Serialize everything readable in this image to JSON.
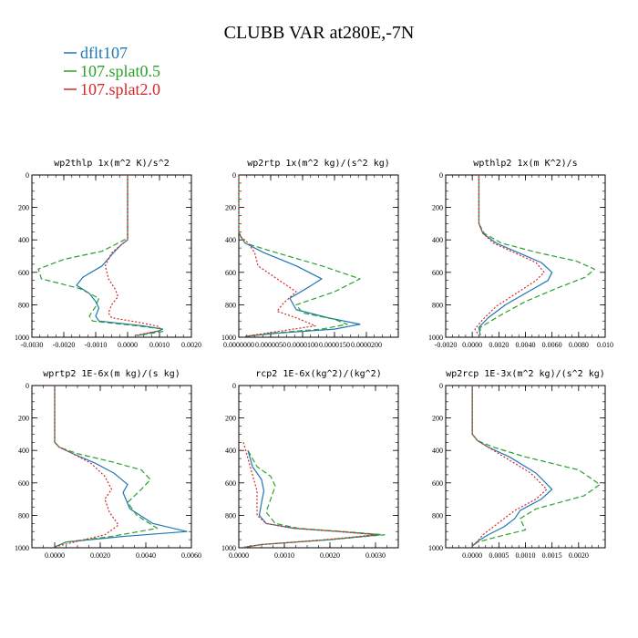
{
  "title": "CLUBB VAR at280E,-7N",
  "legend": [
    {
      "label": "dflt107",
      "color": "#1f77b4"
    },
    {
      "label": "107.splat0.5",
      "color": "#2ca02c"
    },
    {
      "label": "107.splat2.0",
      "color": "#d62728"
    }
  ],
  "chart_data": [
    {
      "type": "line",
      "title": "wp2thlp  1x(m^2 K)/s^2",
      "xlim": [
        -0.003,
        0.002
      ],
      "ylim": [
        0,
        1000
      ],
      "x_ticks": [
        -0.003,
        -0.002,
        -0.001,
        0.0,
        0.001,
        0.002
      ],
      "x_tick_labels": [
        "-0.0030",
        "-0.0020",
        "-0.0010",
        "0.0000",
        "0.0010",
        "0.0020"
      ],
      "y_ticks": [
        0,
        200,
        400,
        600,
        800,
        1000
      ],
      "y_tick_labels": [
        "0",
        "200",
        "400",
        "600",
        "800",
        "1000"
      ],
      "series": [
        {
          "name": "dflt107",
          "x": [
            0,
            0,
            0,
            0,
            -0.0002,
            -0.0004,
            -0.0008,
            -0.0014,
            -0.0016,
            -0.0012,
            -0.001,
            -0.0009,
            -0.001,
            -0.0009,
            0.0005,
            0.0011,
            0.001,
            0.0003
          ],
          "y": [
            0,
            200,
            350,
            400,
            430,
            470,
            560,
            630,
            680,
            730,
            780,
            820,
            870,
            900,
            930,
            950,
            960,
            990
          ]
        },
        {
          "name": "107.splat0.5",
          "x": [
            0,
            0,
            0,
            0,
            -0.0003,
            -0.0008,
            -0.002,
            -0.0028,
            -0.0027,
            -0.0015,
            -0.0009,
            -0.001,
            -0.0012,
            -0.0011,
            0.0003,
            0.0011,
            0.0011,
            0.0003
          ],
          "y": [
            0,
            200,
            350,
            390,
            420,
            470,
            520,
            580,
            640,
            700,
            760,
            810,
            870,
            900,
            930,
            950,
            965,
            990
          ]
        },
        {
          "name": "107.splat2.0",
          "x": [
            0,
            0,
            0,
            0,
            -0.0002,
            -0.0005,
            -0.0007,
            -0.0006,
            -0.0004,
            -0.0003,
            -0.0005,
            -0.0006,
            -0.0005,
            0.0004,
            0.001,
            0.001,
            0.0002
          ],
          "y": [
            0,
            200,
            350,
            400,
            430,
            480,
            560,
            640,
            700,
            750,
            800,
            850,
            880,
            910,
            935,
            960,
            990
          ]
        }
      ]
    },
    {
      "type": "line",
      "title": "wp2rtp  1x(m^2 kg)/(s^2 kg)",
      "xlim": [
        0,
        2.5e-05
      ],
      "ylim": [
        0,
        1000
      ],
      "x_ticks": [
        0,
        5e-06,
        1e-05,
        1.5e-05,
        2e-05
      ],
      "x_tick_labels": [
        "0.0000000",
        "0.0000050",
        "0.0000100",
        "0.0000150",
        "0.0000200"
      ],
      "y_ticks": [
        0,
        200,
        400,
        600,
        800,
        1000
      ],
      "y_tick_labels": [
        "0",
        "200",
        "400",
        "600",
        "800",
        "1000"
      ],
      "series": [
        {
          "name": "dflt107",
          "x": [
            0,
            0,
            0,
            3e-07,
            1e-06,
            4e-06,
            9e-06,
            1.3e-05,
            1.1e-05,
            8e-06,
            9e-06,
            1.4e-05,
            1.9e-05,
            1.5e-05,
            6e-06,
            1e-06
          ],
          "y": [
            0,
            200,
            350,
            380,
            420,
            480,
            560,
            640,
            690,
            760,
            830,
            880,
            920,
            950,
            975,
            995
          ]
        },
        {
          "name": "107.splat0.5",
          "x": [
            0,
            0,
            0,
            3e-07,
            1e-06,
            6e-06,
            1.3e-05,
            1.9e-05,
            1.5e-05,
            9e-06,
            1e-05,
            1.5e-05,
            1.7e-05,
            1.3e-05,
            5e-06,
            1e-06
          ],
          "y": [
            0,
            200,
            350,
            380,
            420,
            480,
            560,
            640,
            720,
            800,
            850,
            890,
            920,
            950,
            975,
            995
          ]
        },
        {
          "name": "107.splat2.0",
          "x": [
            0,
            0,
            0,
            3e-07,
            1.5e-06,
            2.5e-06,
            3e-06,
            6e-06,
            9e-06,
            7e-06,
            6e-06,
            9e-06,
            1.2e-05,
            6e-06,
            1e-06
          ],
          "y": [
            0,
            200,
            350,
            380,
            420,
            480,
            560,
            640,
            720,
            790,
            840,
            880,
            930,
            965,
            995
          ]
        }
      ]
    },
    {
      "type": "line",
      "title": "wpthlp2  1x(m K^2)/s",
      "xlim": [
        -0.002,
        0.01
      ],
      "ylim": [
        0,
        1000
      ],
      "x_ticks": [
        -0.002,
        0.0,
        0.002,
        0.004,
        0.006,
        0.008,
        0.01
      ],
      "x_tick_labels": [
        "-0.0020",
        "0.0000",
        "0.0020",
        "0.0040",
        "0.0060",
        "0.0080",
        "0.010"
      ],
      "y_ticks": [
        0,
        200,
        400,
        600,
        800,
        1000
      ],
      "y_tick_labels": [
        "0",
        "200",
        "400",
        "600",
        "800",
        "1000"
      ],
      "series": [
        {
          "name": "dflt107",
          "x": [
            0.0005,
            0.0005,
            0.0005,
            0.0008,
            0.0018,
            0.0035,
            0.0052,
            0.006,
            0.0057,
            0.0042,
            0.0025,
            0.0012,
            0.0005,
            0.0006
          ],
          "y": [
            0,
            200,
            300,
            360,
            420,
            480,
            540,
            600,
            650,
            720,
            800,
            880,
            940,
            990
          ]
        },
        {
          "name": "107.splat0.5",
          "x": [
            0.0005,
            0.0005,
            0.0005,
            0.0009,
            0.0022,
            0.005,
            0.0078,
            0.0092,
            0.0085,
            0.0063,
            0.004,
            0.002,
            0.0006,
            0.0006
          ],
          "y": [
            0,
            200,
            300,
            360,
            420,
            480,
            530,
            580,
            630,
            700,
            780,
            870,
            940,
            990
          ]
        },
        {
          "name": "107.splat2.0",
          "x": [
            0.0005,
            0.0005,
            0.0005,
            0.0008,
            0.0016,
            0.0032,
            0.0048,
            0.0054,
            0.0048,
            0.0033,
            0.0018,
            0.0008,
            0.0002,
            0.0005
          ],
          "y": [
            0,
            200,
            300,
            360,
            420,
            480,
            540,
            600,
            650,
            730,
            810,
            890,
            950,
            990
          ]
        }
      ]
    },
    {
      "type": "line",
      "title": "wprtp2  1E-6x(m kg)/(s kg)",
      "xlim": [
        -0.001,
        0.006
      ],
      "ylim": [
        0,
        1000
      ],
      "x_ticks": [
        0.0,
        0.002,
        0.004,
        0.006
      ],
      "x_tick_labels": [
        "0.0000",
        "0.0020",
        "0.0040",
        "0.0060"
      ],
      "y_ticks": [
        0,
        200,
        400,
        600,
        800,
        1000
      ],
      "y_tick_labels": [
        "0",
        "200",
        "400",
        "600",
        "800",
        "1000"
      ],
      "series": [
        {
          "name": "dflt107",
          "x": [
            0,
            0,
            0,
            0.0002,
            0.0008,
            0.0018,
            0.0026,
            0.0032,
            0.003,
            0.0033,
            0.0043,
            0.0058,
            0.003,
            0.0005,
            0
          ],
          "y": [
            0,
            200,
            350,
            380,
            420,
            480,
            540,
            610,
            660,
            760,
            850,
            900,
            930,
            965,
            995
          ]
        },
        {
          "name": "107.splat0.5",
          "x": [
            0,
            0,
            0,
            0.0002,
            0.001,
            0.0025,
            0.0038,
            0.0042,
            0.0038,
            0.0032,
            0.0036,
            0.0045,
            0.0025,
            0.0005,
            0
          ],
          "y": [
            0,
            200,
            350,
            380,
            420,
            470,
            520,
            580,
            640,
            720,
            800,
            880,
            930,
            965,
            995
          ]
        },
        {
          "name": "107.splat2.0",
          "x": [
            0,
            0,
            0,
            0.0002,
            0.0008,
            0.0016,
            0.0022,
            0.0025,
            0.0022,
            0.0024,
            0.0028,
            0.0022,
            0.001,
            0
          ],
          "y": [
            0,
            200,
            350,
            380,
            420,
            480,
            560,
            640,
            700,
            780,
            860,
            920,
            960,
            995
          ]
        }
      ]
    },
    {
      "type": "line",
      "title": "rcp2  1E-6x(kg^2)/(kg^2)",
      "xlim": [
        0,
        0.0035
      ],
      "ylim": [
        0,
        1000
      ],
      "x_ticks": [
        0.0,
        0.001,
        0.002,
        0.003
      ],
      "x_tick_labels": [
        "0.0000",
        "0.0010",
        "0.0020",
        "0.0030"
      ],
      "y_ticks": [
        0,
        200,
        400,
        600,
        800,
        1000
      ],
      "y_tick_labels": [
        "0",
        "200",
        "400",
        "600",
        "800",
        "1000"
      ],
      "series": [
        {
          "name": "dflt107",
          "x": [
            0.0002,
            0.0003,
            0.0005,
            0.00055,
            0.0005,
            0.00045,
            0.0006,
            0.0012,
            0.0022,
            0.0031,
            0.002,
            0.0005,
            0.0001
          ],
          "y": [
            400,
            500,
            580,
            650,
            720,
            800,
            850,
            880,
            900,
            920,
            950,
            980,
            998
          ]
        },
        {
          "name": "107.splat0.5",
          "x": [
            0.0002,
            0.0004,
            0.0007,
            0.0008,
            0.0007,
            0.0006,
            0.0008,
            0.0013,
            0.0023,
            0.0032,
            0.002,
            0.0005,
            0.0001
          ],
          "y": [
            400,
            500,
            560,
            620,
            700,
            780,
            850,
            880,
            900,
            920,
            950,
            980,
            998
          ]
        },
        {
          "name": "107.splat2.0",
          "x": [
            0.0001,
            0.0002,
            0.0003,
            0.0004,
            0.0004,
            0.0004,
            0.0006,
            0.0012,
            0.0022,
            0.003,
            0.0019,
            0.0005,
            0.0001
          ],
          "y": [
            350,
            450,
            550,
            650,
            720,
            800,
            850,
            880,
            900,
            920,
            950,
            980,
            998
          ]
        }
      ]
    },
    {
      "type": "line",
      "title": "wp2rcp  1E-3x(m^2 kg)/(s^2 kg)",
      "xlim": [
        -0.0005,
        0.0025
      ],
      "ylim": [
        0,
        1000
      ],
      "x_ticks": [
        0.0,
        0.0005,
        0.001,
        0.0015,
        0.002
      ],
      "x_tick_labels": [
        "0.0000",
        "0.0005",
        "0.0010",
        "0.0015",
        "0.0020"
      ],
      "y_ticks": [
        0,
        200,
        400,
        600,
        800,
        1000
      ],
      "y_tick_labels": [
        "0",
        "200",
        "400",
        "600",
        "800",
        "1000"
      ],
      "series": [
        {
          "name": "dflt107",
          "x": [
            0,
            0,
            0,
            0.0001,
            0.0003,
            0.0007,
            0.0012,
            0.0015,
            0.0013,
            0.0009,
            0.0008,
            0.0006,
            0.0003,
            0.0001,
            0
          ],
          "y": [
            0,
            200,
            300,
            340,
            380,
            440,
            540,
            640,
            700,
            770,
            820,
            870,
            920,
            960,
            990
          ]
        },
        {
          "name": "107.splat0.5",
          "x": [
            0,
            0,
            0,
            0.0001,
            0.0004,
            0.001,
            0.002,
            0.0024,
            0.0021,
            0.0012,
            0.0009,
            0.001,
            0.0005,
            0.0001,
            0
          ],
          "y": [
            0,
            200,
            300,
            340,
            380,
            440,
            520,
            610,
            680,
            760,
            820,
            890,
            930,
            965,
            990
          ]
        },
        {
          "name": "107.splat2.0",
          "x": [
            0,
            0,
            0,
            0.0001,
            0.0003,
            0.0006,
            0.0011,
            0.0014,
            0.0012,
            0.0008,
            0.0006,
            0.0004,
            0.0002,
            0.0001,
            0
          ],
          "y": [
            0,
            200,
            300,
            340,
            380,
            440,
            540,
            640,
            700,
            770,
            820,
            870,
            920,
            960,
            990
          ]
        }
      ]
    }
  ]
}
